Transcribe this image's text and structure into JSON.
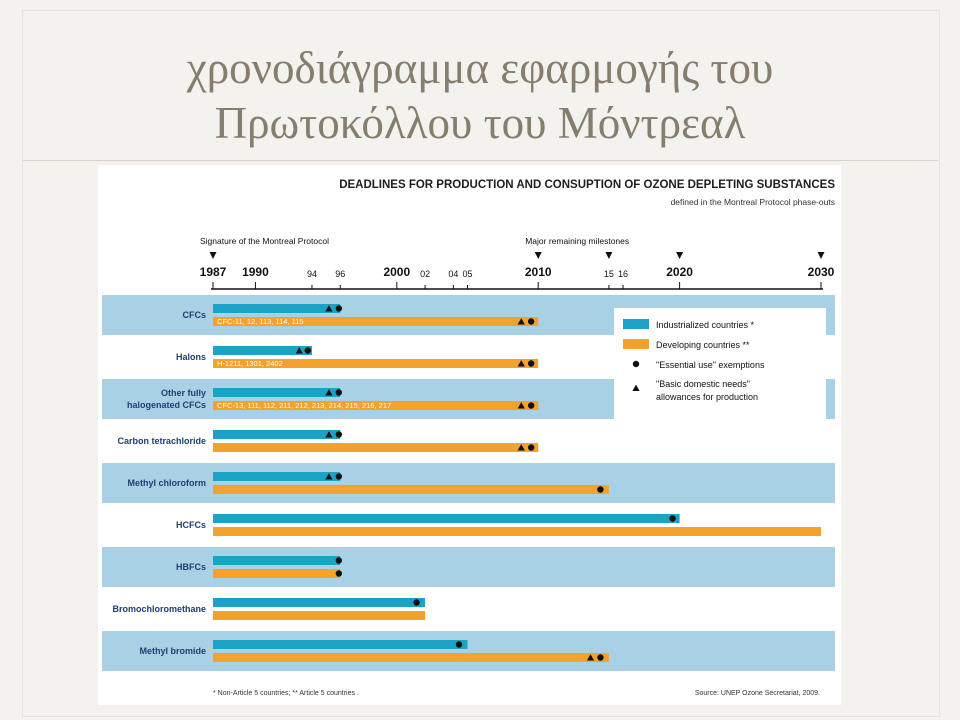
{
  "slide": {
    "title_line1": "χρονοδιάγραμμα εφαρμογής του",
    "title_line2": "Πρωτοκόλλου του Μόντρεαλ"
  },
  "chart_data": {
    "type": "bar",
    "title": "DEADLINES FOR PRODUCTION AND CONSUPTION OF OZONE DEPLETING SUBSTANCES",
    "subtitle": "defined in the Montreal Protocol phase-outs",
    "xlim": [
      1987,
      2030
    ],
    "ticks": [
      {
        "year": 1987,
        "label": "1987",
        "major": true
      },
      {
        "year": 1990,
        "label": "1990",
        "major": true
      },
      {
        "year": 1994,
        "label": "94",
        "major": false
      },
      {
        "year": 1996,
        "label": "96",
        "major": false
      },
      {
        "year": 2000,
        "label": "2000",
        "major": true
      },
      {
        "year": 2002,
        "label": "02",
        "major": false
      },
      {
        "year": 2004,
        "label": "04",
        "major": false
      },
      {
        "year": 2005,
        "label": "05",
        "major": false
      },
      {
        "year": 2010,
        "label": "2010",
        "major": true
      },
      {
        "year": 2015,
        "label": "15",
        "major": false
      },
      {
        "year": 2016,
        "label": "16",
        "major": false
      },
      {
        "year": 2020,
        "label": "2020",
        "major": true
      },
      {
        "year": 2030,
        "label": "2030",
        "major": true
      }
    ],
    "markers": [
      {
        "year": 1987,
        "label": "Signature of the Montreal Protocol"
      },
      {
        "year": 2010,
        "label": "Major remaining milestones"
      },
      {
        "year": 2015,
        "label": ""
      },
      {
        "year": 2020,
        "label": ""
      },
      {
        "year": 2030,
        "label": ""
      }
    ],
    "series": [
      {
        "name": "Industrialized countries *",
        "color": "#1ba3c6"
      },
      {
        "name": "Developing countries **",
        "color": "#f5a12d"
      }
    ],
    "legend_extra": [
      {
        "symbol": "circle",
        "text": "\"Essential use\" exemptions"
      },
      {
        "symbol": "triangle",
        "text": "\"Basic domestic needs\"",
        "text2": "allowances for production"
      }
    ],
    "legend_position": "right",
    "rows": [
      {
        "label": [
          "CFCs"
        ],
        "shaded": true,
        "ind_end": 1996,
        "dev_end": 2010,
        "dev_note": "CFC-11, 12, 113, 114, 115",
        "ind_sym": [
          {
            "s": "triangle",
            "year": 1995.2
          },
          {
            "s": "circle",
            "year": 1995.9
          }
        ],
        "dev_sym": [
          {
            "s": "triangle",
            "year": 2008.8
          },
          {
            "s": "circle",
            "year": 2009.5
          }
        ]
      },
      {
        "label": [
          "Halons"
        ],
        "shaded": false,
        "ind_end": 1994,
        "dev_end": 2010,
        "dev_note": "H-1211, 1301, 2402",
        "ind_sym": [
          {
            "s": "triangle",
            "year": 1993.1
          },
          {
            "s": "circle",
            "year": 1993.7
          }
        ],
        "dev_sym": [
          {
            "s": "triangle",
            "year": 2008.8
          },
          {
            "s": "circle",
            "year": 2009.5
          }
        ]
      },
      {
        "label": [
          "Other fully",
          "halogenated CFCs"
        ],
        "shaded": true,
        "ind_end": 1996,
        "dev_end": 2010,
        "dev_note": "CFC-13, 111, 112, 211, 212, 213, 214, 215, 216, 217",
        "ind_sym": [
          {
            "s": "triangle",
            "year": 1995.2
          },
          {
            "s": "circle",
            "year": 1995.9
          }
        ],
        "dev_sym": [
          {
            "s": "triangle",
            "year": 2008.8
          },
          {
            "s": "circle",
            "year": 2009.5
          }
        ]
      },
      {
        "label": [
          "Carbon tetrachloride"
        ],
        "shaded": false,
        "ind_end": 1996,
        "dev_end": 2010,
        "dev_note": "",
        "ind_sym": [
          {
            "s": "triangle",
            "year": 1995.2
          },
          {
            "s": "circle",
            "year": 1995.9
          }
        ],
        "dev_sym": [
          {
            "s": "triangle",
            "year": 2008.8
          },
          {
            "s": "circle",
            "year": 2009.5
          }
        ]
      },
      {
        "label": [
          "Methyl chloroform"
        ],
        "shaded": true,
        "ind_end": 1996,
        "dev_end": 2015,
        "dev_note": "",
        "ind_sym": [
          {
            "s": "triangle",
            "year": 1995.2
          },
          {
            "s": "circle",
            "year": 1995.9
          }
        ],
        "dev_sym": [
          {
            "s": "circle",
            "year": 2014.4
          }
        ]
      },
      {
        "label": [
          "HCFCs"
        ],
        "shaded": false,
        "ind_end": 2020,
        "dev_end": 2030,
        "dev_note": "",
        "ind_sym": [
          {
            "s": "circle",
            "year": 2019.5
          }
        ],
        "dev_sym": []
      },
      {
        "label": [
          "HBFCs"
        ],
        "shaded": true,
        "ind_end": 1996,
        "dev_end": 1996,
        "dev_note": "",
        "ind_sym": [
          {
            "s": "circle",
            "year": 1995.9
          }
        ],
        "dev_sym": [
          {
            "s": "circle",
            "year": 1995.9
          }
        ]
      },
      {
        "label": [
          "Bromochloromethane"
        ],
        "shaded": false,
        "ind_end": 2002,
        "dev_end": 2002,
        "dev_note": "",
        "ind_sym": [
          {
            "s": "circle",
            "year": 2001.4
          }
        ],
        "dev_sym": []
      },
      {
        "label": [
          "Methyl bromide"
        ],
        "shaded": true,
        "ind_end": 2005,
        "dev_end": 2015,
        "dev_note": "",
        "ind_sym": [
          {
            "s": "circle",
            "year": 2004.4
          }
        ],
        "dev_sym": [
          {
            "s": "triangle",
            "year": 2013.7
          },
          {
            "s": "circle",
            "year": 2014.4
          }
        ]
      }
    ],
    "footnote": "* Non-Article 5 countries; ** Article 5 countries .",
    "source": "Source: UNEP Ozone Secretariat, 2009."
  }
}
